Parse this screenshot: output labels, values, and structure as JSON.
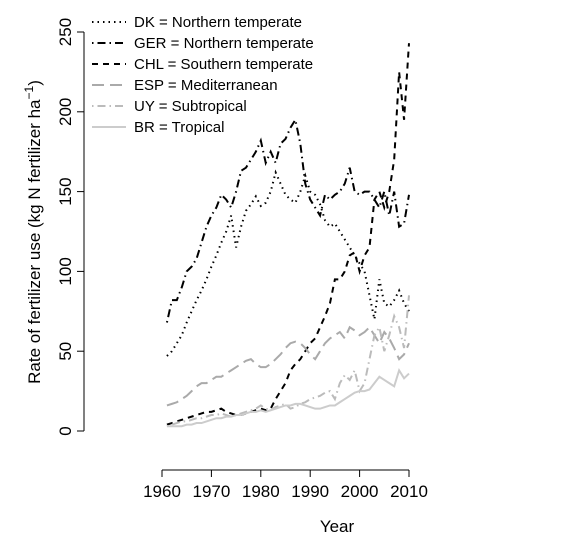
{
  "chart_data": {
    "type": "line",
    "xlabel": "Year",
    "ylabel": "Rate of fertilizer use (kg N fertilizer ha",
    "ylabel_sup": "−1",
    "ylabel_end": ")",
    "x": [
      1961,
      1962,
      1963,
      1964,
      1965,
      1966,
      1967,
      1968,
      1969,
      1970,
      1971,
      1972,
      1973,
      1974,
      1975,
      1976,
      1977,
      1978,
      1979,
      1980,
      1981,
      1982,
      1983,
      1984,
      1985,
      1986,
      1987,
      1988,
      1989,
      1990,
      1991,
      1992,
      1993,
      1994,
      1995,
      1996,
      1997,
      1998,
      1999,
      2000,
      2001,
      2002,
      2003,
      2004,
      2005,
      2006,
      2007,
      2008,
      2009,
      2010
    ],
    "xlim": [
      1960,
      2010
    ],
    "xticks": [
      1960,
      1970,
      1980,
      1990,
      2000,
      2010
    ],
    "ylim": [
      0,
      250
    ],
    "yticks": [
      0,
      50,
      100,
      150,
      200,
      250
    ],
    "legend": "top-left",
    "series": [
      {
        "name": "DK = Northern temperate",
        "color": "#000000",
        "linestyle": "dotted",
        "values": [
          47,
          50,
          55,
          60,
          68,
          75,
          82,
          88,
          95,
          103,
          110,
          118,
          125,
          135,
          115,
          128,
          138,
          142,
          147,
          141,
          143,
          150,
          162,
          155,
          148,
          145,
          143,
          150,
          160,
          150,
          148,
          142,
          132,
          128,
          130,
          125,
          120,
          115,
          110,
          105,
          100,
          85,
          70,
          95,
          80,
          78,
          82,
          88,
          80,
          75
        ]
      },
      {
        "name": "GER = Northern temperate",
        "color": "#000000",
        "linestyle": "dotdash",
        "values": [
          68,
          82,
          82,
          90,
          100,
          103,
          108,
          118,
          128,
          135,
          140,
          148,
          145,
          140,
          150,
          163,
          165,
          170,
          175,
          182,
          168,
          175,
          168,
          180,
          183,
          190,
          195,
          180,
          155,
          145,
          140,
          135,
          148,
          145,
          148,
          150,
          155,
          165,
          150,
          148,
          150,
          150,
          145,
          140,
          150,
          135,
          150,
          128,
          130,
          148
        ]
      },
      {
        "name": "CHL = Southern temperate",
        "color": "#000000",
        "linestyle": "dashed",
        "values": [
          4,
          5,
          6,
          7,
          8,
          9,
          10,
          11,
          12,
          12,
          13,
          14,
          12,
          11,
          10,
          10,
          11,
          12,
          13,
          14,
          13,
          14,
          20,
          25,
          30,
          38,
          42,
          45,
          50,
          55,
          58,
          65,
          72,
          80,
          95,
          95,
          100,
          110,
          112,
          100,
          110,
          115,
          145,
          150,
          140,
          150,
          170,
          225,
          195,
          243
        ]
      },
      {
        "name": "ESP = Mediterranean",
        "color": "#aaaaaa",
        "linestyle": "longdash",
        "values": [
          16,
          17,
          18,
          20,
          22,
          25,
          28,
          30,
          30,
          32,
          34,
          34,
          36,
          38,
          40,
          42,
          44,
          45,
          42,
          40,
          40,
          42,
          45,
          48,
          52,
          55,
          56,
          55,
          52,
          48,
          45,
          50,
          55,
          58,
          60,
          62,
          58,
          65,
          63,
          60,
          62,
          65,
          60,
          55,
          62,
          58,
          52,
          45,
          48,
          55
        ]
      },
      {
        "name": "UY = Subtropical",
        "color": "#bbbbbb",
        "linestyle": "dotdash",
        "values": [
          3,
          4,
          5,
          6,
          6,
          7,
          8,
          8,
          9,
          10,
          10,
          11,
          10,
          9,
          10,
          11,
          12,
          13,
          14,
          16,
          14,
          13,
          15,
          16,
          17,
          14,
          15,
          17,
          18,
          20,
          21,
          22,
          24,
          25,
          20,
          30,
          35,
          32,
          38,
          25,
          30,
          45,
          60,
          65,
          50,
          60,
          72,
          65,
          52,
          85
        ]
      },
      {
        "name": "BR = Tropical",
        "color": "#cccccc",
        "linestyle": "solid",
        "values": [
          3,
          3,
          3,
          3,
          4,
          4,
          5,
          5,
          6,
          7,
          8,
          8,
          9,
          9,
          10,
          10,
          11,
          12,
          12,
          13,
          12,
          13,
          14,
          15,
          16,
          16,
          17,
          17,
          16,
          15,
          14,
          14,
          15,
          16,
          16,
          18,
          20,
          22,
          24,
          25,
          25,
          26,
          30,
          34,
          32,
          30,
          28,
          38,
          33,
          36
        ]
      }
    ]
  }
}
